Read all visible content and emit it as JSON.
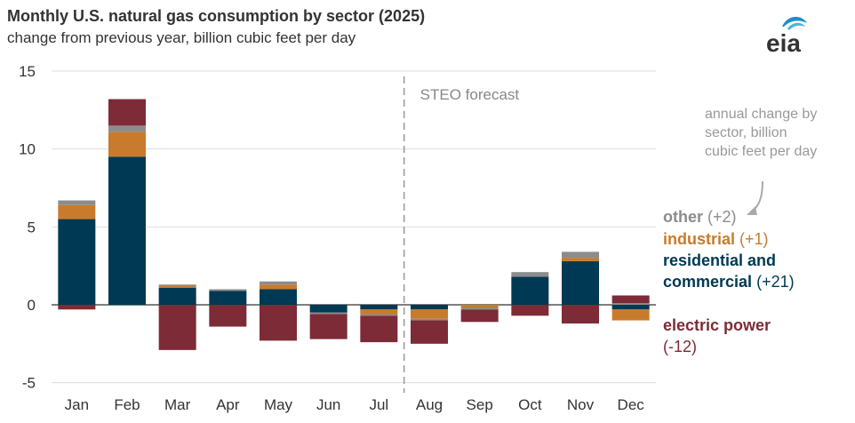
{
  "title": "Monthly U.S. natural gas consumption by sector (2025)",
  "subtitle": "change from previous year, billion cubic feet per day",
  "logo_text": "eia",
  "annotation": "annual change by sector, billion cubic feet per day",
  "forecast_label": "STEO forecast",
  "legend": {
    "other": {
      "label": "other",
      "value": "(+2)",
      "color": "#8c8c8c"
    },
    "industrial": {
      "label": "industrial",
      "value": "(+1)",
      "color": "#c87b2c"
    },
    "residential": {
      "label": "residential and commercial",
      "line1": "residential and",
      "line2": "commercial",
      "value": "(+21)",
      "color": "#003953"
    },
    "electric": {
      "label": "electric power",
      "value": "(-12)",
      "color": "#7d2b36"
    }
  },
  "chart_data": {
    "type": "bar",
    "stacked": true,
    "title": "Monthly U.S. natural gas consumption by sector (2025)",
    "ylabel": "change from previous year, billion cubic feet per day",
    "ylim": [
      -5,
      15
    ],
    "yticks": [
      -5,
      0,
      5,
      10,
      15
    ],
    "grid": true,
    "legend_position": "right",
    "forecast_starts_after": "Jul",
    "categories": [
      "Jan",
      "Feb",
      "Mar",
      "Apr",
      "May",
      "Jun",
      "Jul",
      "Aug",
      "Sep",
      "Oct",
      "Nov",
      "Dec"
    ],
    "series": [
      {
        "name": "residential and commercial",
        "color": "#003953",
        "values": [
          5.5,
          9.5,
          1.1,
          0.9,
          1.0,
          -0.5,
          -0.3,
          -0.3,
          0.0,
          1.8,
          2.8,
          -0.3
        ]
      },
      {
        "name": "industrial",
        "color": "#c87b2c",
        "values": [
          0.9,
          1.6,
          0.1,
          0.0,
          0.3,
          0.0,
          -0.3,
          -0.6,
          -0.2,
          0.0,
          0.2,
          -0.7
        ]
      },
      {
        "name": "other",
        "color": "#8c8c8c",
        "values": [
          0.3,
          0.4,
          0.1,
          0.1,
          0.2,
          -0.1,
          -0.1,
          -0.1,
          -0.1,
          0.3,
          0.4,
          0.1
        ]
      },
      {
        "name": "electric power",
        "color": "#7d2b36",
        "values": [
          -0.3,
          1.7,
          -2.9,
          -1.4,
          -2.3,
          -1.6,
          -1.7,
          -1.5,
          -0.8,
          -0.7,
          -1.2,
          0.5
        ]
      }
    ]
  }
}
